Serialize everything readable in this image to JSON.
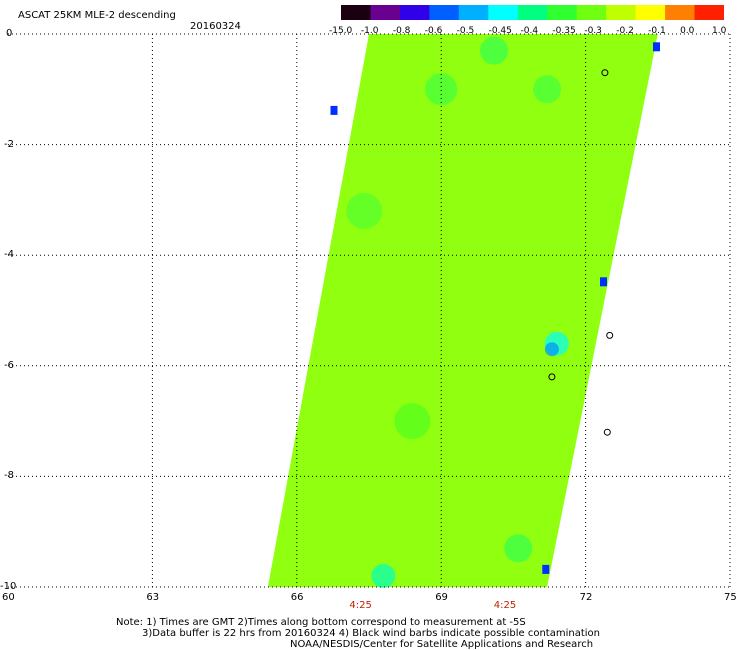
{
  "header": {
    "title": "ASCAT 25KM MLE-2 descending",
    "date": "20160324"
  },
  "colorbar": {
    "labels": [
      "-15.0",
      "-1.0",
      "-0.8",
      "-0.6",
      "-0.5",
      "-0.45",
      "-0.4",
      "-0.35",
      "-0.3",
      "-0.2",
      "-0.1",
      "0.0",
      "1.0"
    ],
    "colors": [
      "#1a0010",
      "#6a0090",
      "#3000e8",
      "#0060ff",
      "#00b0ff",
      "#00ffff",
      "#00ff80",
      "#30ff30",
      "#70ff10",
      "#c0ff00",
      "#ffff00",
      "#ff8000",
      "#ff2000"
    ]
  },
  "map": {
    "lat_labels": [
      "0",
      "-2",
      "-4",
      "-6",
      "-8",
      "-10"
    ],
    "lon_labels": [
      "60",
      "63",
      "66",
      "69",
      "72",
      "75"
    ],
    "lat_values": [
      0,
      -2,
      -4,
      -6,
      -8,
      -10
    ],
    "lon_values": [
      60,
      63,
      66,
      69,
      72,
      75
    ],
    "lon_range": [
      60,
      75
    ],
    "lat_range": [
      -10,
      0
    ],
    "time_labels": [
      "4:25",
      "4:25"
    ],
    "time_lons": [
      67.3,
      70.3
    ],
    "grid": "dotted",
    "swath_color": "#90ff10"
  },
  "notes": {
    "line1": "Note: 1) Times are GMT 2)Times along bottom correspond to measurement at -5S",
    "line2": "3)Data buffer is 22 hrs from 20160324 4) Black wind barbs indicate possible contamination",
    "line3": "NOAA/NESDIS/Center for Satellite Applications and Research"
  }
}
